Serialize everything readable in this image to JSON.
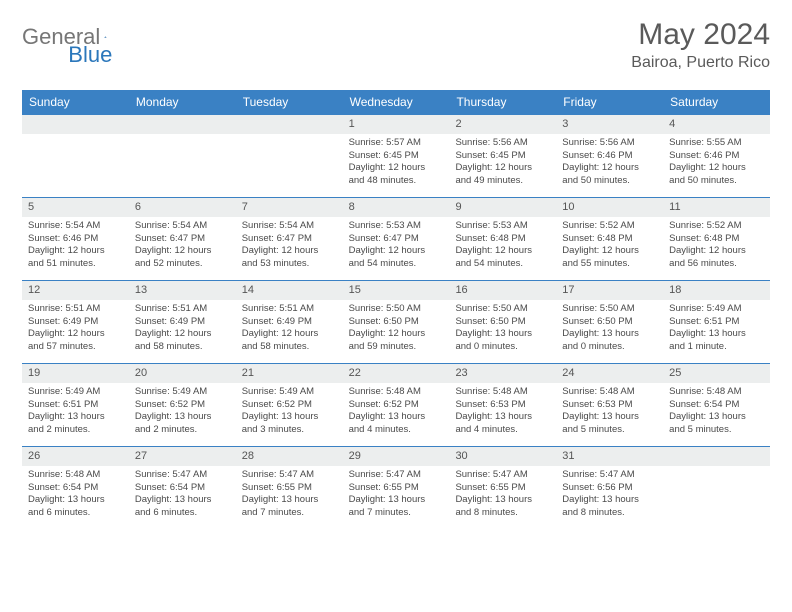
{
  "brand": {
    "general": "General",
    "blue": "Blue"
  },
  "title": "May 2024",
  "location": "Bairoa, Puerto Rico",
  "colors": {
    "header_bg": "#3a81c4",
    "header_text": "#ffffff",
    "daynum_bg": "#eceeee",
    "border": "#3a81c4",
    "body_text": "#4a4a4a",
    "title_text": "#5a5a5a",
    "logo_gray": "#767676",
    "logo_blue": "#2b77bb"
  },
  "day_headers": [
    "Sunday",
    "Monday",
    "Tuesday",
    "Wednesday",
    "Thursday",
    "Friday",
    "Saturday"
  ],
  "weeks": [
    [
      null,
      null,
      null,
      {
        "n": "1",
        "sr": "5:57 AM",
        "ss": "6:45 PM",
        "dl": "12 hours and 48 minutes."
      },
      {
        "n": "2",
        "sr": "5:56 AM",
        "ss": "6:45 PM",
        "dl": "12 hours and 49 minutes."
      },
      {
        "n": "3",
        "sr": "5:56 AM",
        "ss": "6:46 PM",
        "dl": "12 hours and 50 minutes."
      },
      {
        "n": "4",
        "sr": "5:55 AM",
        "ss": "6:46 PM",
        "dl": "12 hours and 50 minutes."
      }
    ],
    [
      {
        "n": "5",
        "sr": "5:54 AM",
        "ss": "6:46 PM",
        "dl": "12 hours and 51 minutes."
      },
      {
        "n": "6",
        "sr": "5:54 AM",
        "ss": "6:47 PM",
        "dl": "12 hours and 52 minutes."
      },
      {
        "n": "7",
        "sr": "5:54 AM",
        "ss": "6:47 PM",
        "dl": "12 hours and 53 minutes."
      },
      {
        "n": "8",
        "sr": "5:53 AM",
        "ss": "6:47 PM",
        "dl": "12 hours and 54 minutes."
      },
      {
        "n": "9",
        "sr": "5:53 AM",
        "ss": "6:48 PM",
        "dl": "12 hours and 54 minutes."
      },
      {
        "n": "10",
        "sr": "5:52 AM",
        "ss": "6:48 PM",
        "dl": "12 hours and 55 minutes."
      },
      {
        "n": "11",
        "sr": "5:52 AM",
        "ss": "6:48 PM",
        "dl": "12 hours and 56 minutes."
      }
    ],
    [
      {
        "n": "12",
        "sr": "5:51 AM",
        "ss": "6:49 PM",
        "dl": "12 hours and 57 minutes."
      },
      {
        "n": "13",
        "sr": "5:51 AM",
        "ss": "6:49 PM",
        "dl": "12 hours and 58 minutes."
      },
      {
        "n": "14",
        "sr": "5:51 AM",
        "ss": "6:49 PM",
        "dl": "12 hours and 58 minutes."
      },
      {
        "n": "15",
        "sr": "5:50 AM",
        "ss": "6:50 PM",
        "dl": "12 hours and 59 minutes."
      },
      {
        "n": "16",
        "sr": "5:50 AM",
        "ss": "6:50 PM",
        "dl": "13 hours and 0 minutes."
      },
      {
        "n": "17",
        "sr": "5:50 AM",
        "ss": "6:50 PM",
        "dl": "13 hours and 0 minutes."
      },
      {
        "n": "18",
        "sr": "5:49 AM",
        "ss": "6:51 PM",
        "dl": "13 hours and 1 minute."
      }
    ],
    [
      {
        "n": "19",
        "sr": "5:49 AM",
        "ss": "6:51 PM",
        "dl": "13 hours and 2 minutes."
      },
      {
        "n": "20",
        "sr": "5:49 AM",
        "ss": "6:52 PM",
        "dl": "13 hours and 2 minutes."
      },
      {
        "n": "21",
        "sr": "5:49 AM",
        "ss": "6:52 PM",
        "dl": "13 hours and 3 minutes."
      },
      {
        "n": "22",
        "sr": "5:48 AM",
        "ss": "6:52 PM",
        "dl": "13 hours and 4 minutes."
      },
      {
        "n": "23",
        "sr": "5:48 AM",
        "ss": "6:53 PM",
        "dl": "13 hours and 4 minutes."
      },
      {
        "n": "24",
        "sr": "5:48 AM",
        "ss": "6:53 PM",
        "dl": "13 hours and 5 minutes."
      },
      {
        "n": "25",
        "sr": "5:48 AM",
        "ss": "6:54 PM",
        "dl": "13 hours and 5 minutes."
      }
    ],
    [
      {
        "n": "26",
        "sr": "5:48 AM",
        "ss": "6:54 PM",
        "dl": "13 hours and 6 minutes."
      },
      {
        "n": "27",
        "sr": "5:47 AM",
        "ss": "6:54 PM",
        "dl": "13 hours and 6 minutes."
      },
      {
        "n": "28",
        "sr": "5:47 AM",
        "ss": "6:55 PM",
        "dl": "13 hours and 7 minutes."
      },
      {
        "n": "29",
        "sr": "5:47 AM",
        "ss": "6:55 PM",
        "dl": "13 hours and 7 minutes."
      },
      {
        "n": "30",
        "sr": "5:47 AM",
        "ss": "6:55 PM",
        "dl": "13 hours and 8 minutes."
      },
      {
        "n": "31",
        "sr": "5:47 AM",
        "ss": "6:56 PM",
        "dl": "13 hours and 8 minutes."
      },
      null
    ]
  ]
}
